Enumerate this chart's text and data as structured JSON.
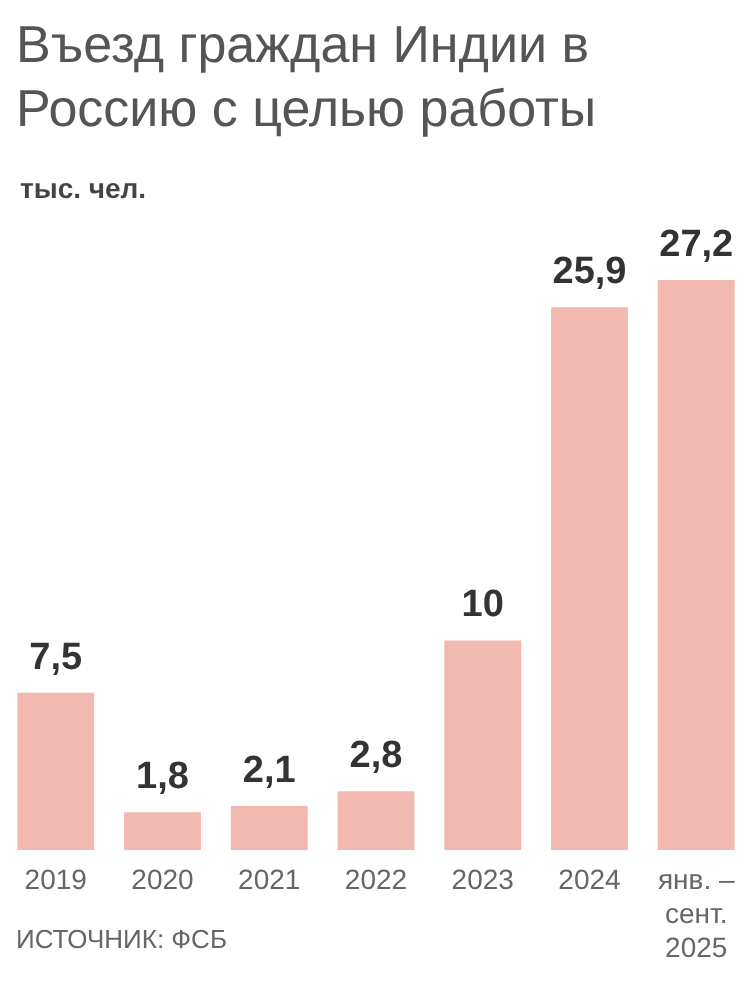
{
  "chart_data": {
    "type": "bar",
    "title": "Въезд граждан Индии в Россию с целью работы",
    "subtitle": "тыс. чел.",
    "categories": [
      "2019",
      "2020",
      "2021",
      "2022",
      "2023",
      "2024",
      "янв. –\nсент.\n2025"
    ],
    "values": [
      7.5,
      1.8,
      2.1,
      2.8,
      10,
      25.9,
      27.2
    ],
    "value_labels": [
      "7,5",
      "1,8",
      "2,1",
      "2,8",
      "10",
      "25,9",
      "27,2"
    ],
    "color": "#f2b9b1",
    "annotations": [
      "ИСТОЧНИК: ФСБ"
    ]
  }
}
